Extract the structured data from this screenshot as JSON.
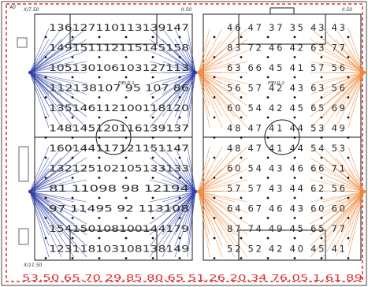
{
  "corner_labels": {
    "top_left_a": "A0",
    "top_left": "X/7.50",
    "top_mid": "II.50",
    "top_right": "II.50",
    "bottom_left": "X/11.50"
  },
  "field_labels": {
    "left": "FIELD 1",
    "right": "FIELD 2"
  },
  "left_field_rows": [
    "136127110113139147",
    "149151112115145158",
    "105130106103127113",
    "112138107 95 107 86",
    "135146112100118120",
    "148145120116139137",
    "160144117121151147",
    "132125102105133133",
    "81 11098 98 12194",
    "97 11495 92 113108",
    "154150108100144179",
    "123118103108138149"
  ],
  "right_field_rows": [
    "46 47 37 35 43 43",
    "83 72 46 42 63 77",
    "63 66 45 41 57 56",
    "56 57 42 43 63 56",
    "60 54 42 45 65 69",
    "48 47 41 44 53 49",
    "48 47 41 44 54 53",
    "60 54 43 46 66 71",
    "57 57 43 44 62 56",
    "64 67 46 43 60 60",
    "87 74 49 45 65 77",
    "52 52 42 40 45 41"
  ],
  "bottom_readout": "53.50 65.70 29.85 80.65 51.26 20.34 76.05 1.61 89",
  "colors": {
    "left_rays": "#2d3ea8",
    "right_rays": "#f08a3c",
    "border": "#d93030",
    "field_line": "#1a1a1a"
  }
}
